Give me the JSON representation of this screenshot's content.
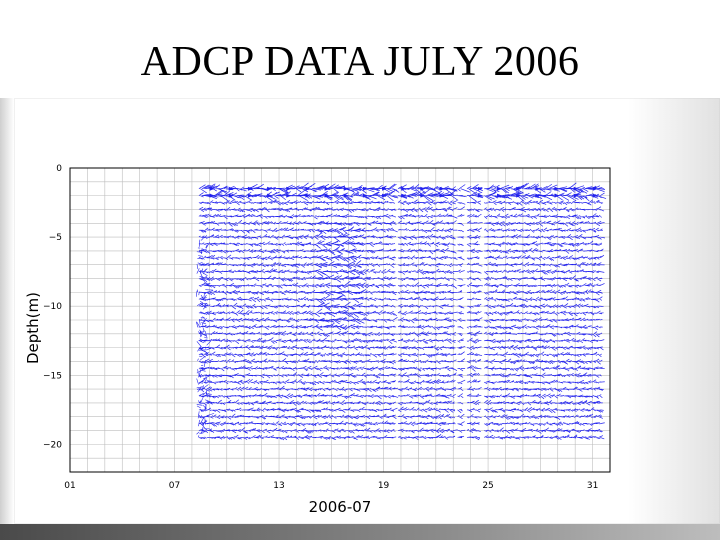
{
  "slide": {
    "title": "ADCP DATA JULY 2006"
  },
  "chart_data": {
    "type": "quiver",
    "xlabel": "2006-07",
    "ylabel": "Depth(m)",
    "x_ticks": [
      "01",
      "07",
      "13",
      "19",
      "25",
      "31"
    ],
    "x_tick_days": [
      1,
      7,
      13,
      19,
      25,
      31
    ],
    "xlim_days": [
      1,
      32
    ],
    "y_ticks": [
      0,
      -5,
      -10,
      -15,
      -20
    ],
    "ylim": [
      -22,
      0
    ],
    "grid": true,
    "data_start_day": 8.4,
    "data_end_day": 31.5,
    "depth_min": -19.5,
    "depth_max": -1.5,
    "vector_color": "#2222ee",
    "gaps_days": [
      19.7,
      23.1,
      23.6,
      24.6
    ]
  }
}
